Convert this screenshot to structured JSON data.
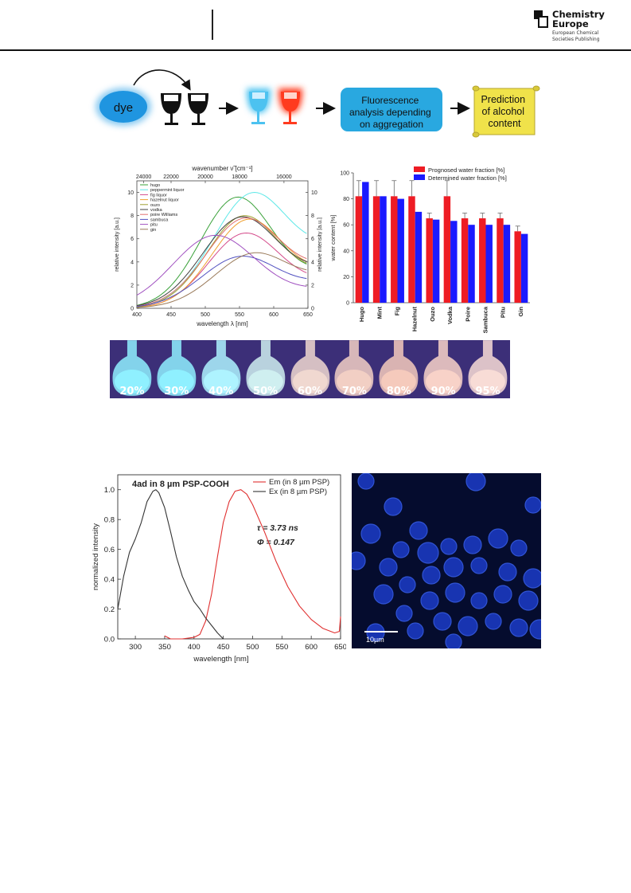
{
  "header": {
    "publisher_line1": "Chemistry",
    "publisher_line2": "Europe",
    "publisher_sub1": "European Chemical",
    "publisher_sub2": "Societies Publishing"
  },
  "graphical_abstract": {
    "dye_label": "dye",
    "step_fluorescence": [
      "Fluorescence",
      "analysis depending",
      "on aggregation"
    ],
    "step_prediction": [
      "Prediction",
      "of alcohol",
      "content"
    ],
    "colors": {
      "dye": "#3fa9e8",
      "fluorescence_box": "#29a8e0",
      "scroll": "#f0e24a",
      "red_glass": "#ff3b1f",
      "blue_glass": "#4cc2f0"
    }
  },
  "chart_data": [
    {
      "type": "line",
      "xlabel": "wavelength λ [nm]",
      "ylabel": "relative intensity [a.u.]",
      "y2label": "relative intensity [a.u.]",
      "top_axis_label": "wavenumber ν̃ [cm⁻¹]",
      "top_ticks": [
        "24000",
        "22000",
        "20000",
        "18000",
        "16000"
      ],
      "xlim": [
        400,
        650
      ],
      "ylim": [
        0,
        11
      ],
      "x_ticks": [
        400,
        450,
        500,
        550,
        600,
        650
      ],
      "y_ticks": [
        0,
        2,
        4,
        6,
        8,
        10
      ],
      "legend_position": "top-left",
      "series": [
        {
          "name": "hugo",
          "color": "#3aa13a",
          "peak": 548,
          "height": 9.6,
          "width": 55,
          "tail": 4.2
        },
        {
          "name": "peppermint liquor",
          "color": "#5de8e8",
          "peak": 572,
          "height": 10.0,
          "width": 60,
          "tail": 6.2
        },
        {
          "name": "fig liquor",
          "color": "#d44a8a",
          "peak": 560,
          "height": 6.5,
          "width": 55,
          "tail": 3.0
        },
        {
          "name": "hazelnut liquor",
          "color": "#f0a030",
          "peak": 565,
          "height": 7.7,
          "width": 55,
          "tail": 4.0
        },
        {
          "name": "ouzo",
          "color": "#a0a030",
          "peak": 558,
          "height": 8.0,
          "width": 55,
          "tail": 4.2
        },
        {
          "name": "vodka",
          "color": "#404040",
          "peak": 555,
          "height": 7.9,
          "width": 58,
          "tail": 4.4
        },
        {
          "name": "poire Williams",
          "color": "#e07070",
          "peak": 560,
          "height": 7.8,
          "width": 58,
          "tail": 4.6
        },
        {
          "name": "sambuca",
          "color": "#5050c0",
          "peak": 555,
          "height": 4.5,
          "width": 60,
          "tail": 3.0
        },
        {
          "name": "pitu",
          "color": "#a050c0",
          "peak": 515,
          "height": 6.3,
          "width": 62,
          "tail": 2.4
        },
        {
          "name": "gin",
          "color": "#9a7a5a",
          "peak": 575,
          "height": 4.8,
          "width": 60,
          "tail": 3.4
        }
      ]
    },
    {
      "type": "bar",
      "ylabel": "water content [%]",
      "ylim": [
        0,
        100
      ],
      "y_ticks": [
        0,
        20,
        40,
        60,
        80,
        100
      ],
      "legend_position": "top-right",
      "categories": [
        "Hugo",
        "Mint",
        "Fig",
        "Hazelnut",
        "Ouzo",
        "Vodka",
        "Poire",
        "Sambuca",
        "Pitu",
        "Gin"
      ],
      "series": [
        {
          "name": "Prognosed water fraction [%]",
          "color": "#ee1c24",
          "values": [
            82,
            82,
            82,
            82,
            65,
            82,
            65,
            65,
            65,
            55
          ],
          "errors": [
            12,
            12,
            12,
            12,
            4,
            12,
            4,
            4,
            4,
            4
          ]
        },
        {
          "name": "Determined water fraction [%]",
          "color": "#1a1aff",
          "values": [
            93,
            82,
            80,
            70,
            64,
            63,
            60,
            60,
            60,
            53
          ]
        }
      ]
    },
    {
      "type": "line",
      "title": "4ad in 8 µm PSP-COOH",
      "xlabel": "wavelength [nm]",
      "ylabel": "normalized intensity",
      "xlim": [
        270,
        650
      ],
      "ylim": [
        0,
        1.1
      ],
      "x_ticks": [
        300,
        350,
        400,
        450,
        500,
        550,
        600,
        650
      ],
      "y_ticks": [
        0.0,
        0.2,
        0.4,
        0.6,
        0.8,
        1.0
      ],
      "legend_position": "top-right",
      "annotations": [
        "τ = 3.73 ns",
        "Φ = 0.147"
      ],
      "series": [
        {
          "name": "Em (in 8 µm PSP)",
          "color": "#e03030",
          "x": [
            350,
            360,
            380,
            400,
            410,
            420,
            430,
            440,
            450,
            460,
            470,
            480,
            490,
            500,
            520,
            540,
            560,
            580,
            600,
            620,
            640,
            648,
            650
          ],
          "y": [
            0.02,
            0.0,
            0.0,
            0.01,
            0.03,
            0.12,
            0.3,
            0.55,
            0.78,
            0.92,
            0.99,
            1.0,
            0.97,
            0.9,
            0.72,
            0.52,
            0.35,
            0.22,
            0.13,
            0.07,
            0.04,
            0.05,
            0.15
          ]
        },
        {
          "name": "Ex (in 8 µm PSP)",
          "color": "#333333",
          "x": [
            270,
            280,
            290,
            300,
            310,
            320,
            330,
            335,
            340,
            350,
            360,
            370,
            380,
            390,
            400,
            410,
            420,
            430,
            440,
            450
          ],
          "y": [
            0.2,
            0.42,
            0.58,
            0.67,
            0.78,
            0.92,
            0.99,
            1.0,
            0.98,
            0.88,
            0.72,
            0.55,
            0.42,
            0.33,
            0.25,
            0.2,
            0.14,
            0.09,
            0.04,
            0.0
          ]
        }
      ]
    }
  ],
  "photo_strip": {
    "labels": [
      "20%",
      "30%",
      "40%",
      "50%",
      "60%",
      "70%",
      "80%",
      "90%",
      "95%"
    ],
    "colors": [
      "#8ff0ff",
      "#8ff0ff",
      "#aef3ff",
      "#cfeff0",
      "#f0d8d0",
      "#f2cfc4",
      "#f5cabc",
      "#f8d2c8",
      "#f8dcd6"
    ]
  },
  "micrograph": {
    "scalebar_label": "10µm"
  }
}
